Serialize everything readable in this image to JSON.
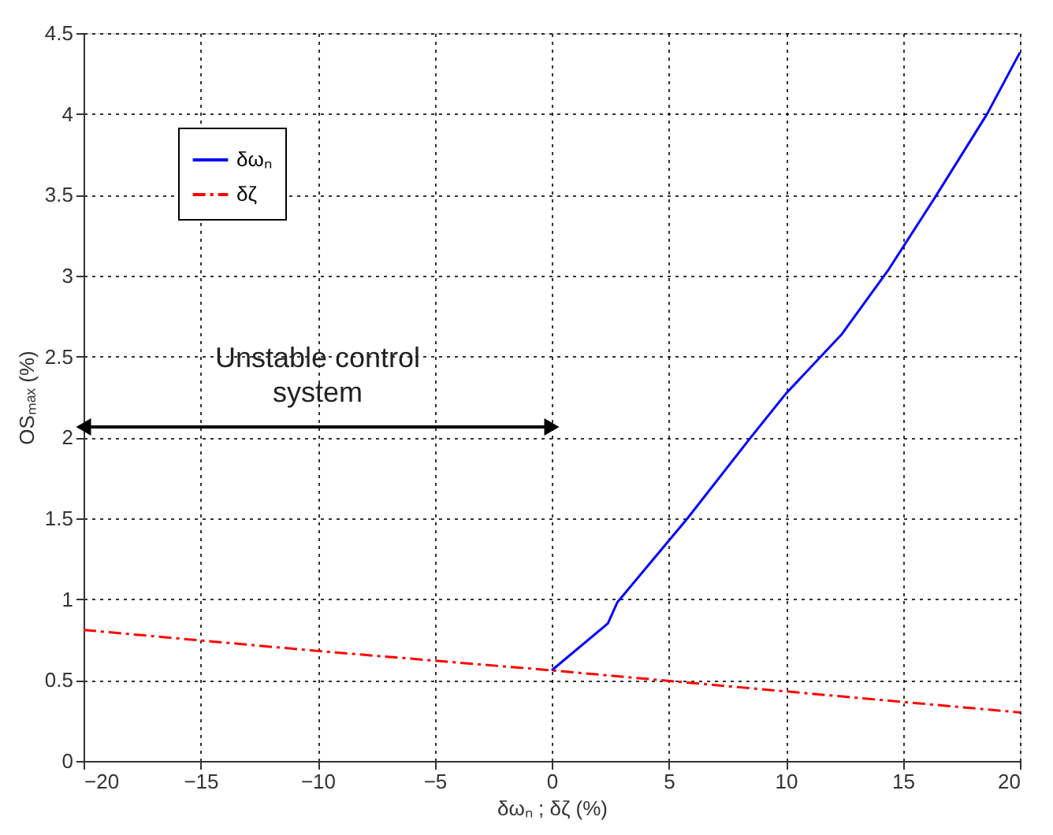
{
  "chart_data": {
    "type": "line",
    "xlabel": "δωₙ ; δζ (%)",
    "ylabel": "OSₘₐₓ (%)",
    "series": [
      {
        "name": "δωₙ",
        "color": "#0000ff",
        "line_style": "solid",
        "x": [
          0,
          2.4,
          2.8,
          5.8,
          8.5,
          10,
          12.4,
          14.4,
          16.4,
          18.6,
          20
        ],
        "values": [
          0.56,
          0.85,
          0.98,
          1.5,
          2.0,
          2.27,
          2.64,
          3.04,
          3.49,
          4.0,
          4.38
        ]
      },
      {
        "name": "δζ",
        "color": "#ff0000",
        "line_style": "dashed",
        "x": [
          -20,
          -10,
          0,
          10,
          20
        ],
        "values": [
          0.81,
          0.68,
          0.56,
          0.43,
          0.3
        ]
      }
    ],
    "xlim": [
      -20,
      20
    ],
    "xticks": [
      -20,
      -15,
      -10,
      -5,
      0,
      5,
      10,
      15,
      20
    ],
    "ylim": [
      0,
      4.5
    ],
    "yticks": [
      0,
      0.5,
      1,
      1.5,
      2,
      2.5,
      3,
      3.5,
      4,
      4.5
    ],
    "grid": true,
    "legend": "top left",
    "marker": "none",
    "annotations": [
      "Unstable control system"
    ]
  }
}
